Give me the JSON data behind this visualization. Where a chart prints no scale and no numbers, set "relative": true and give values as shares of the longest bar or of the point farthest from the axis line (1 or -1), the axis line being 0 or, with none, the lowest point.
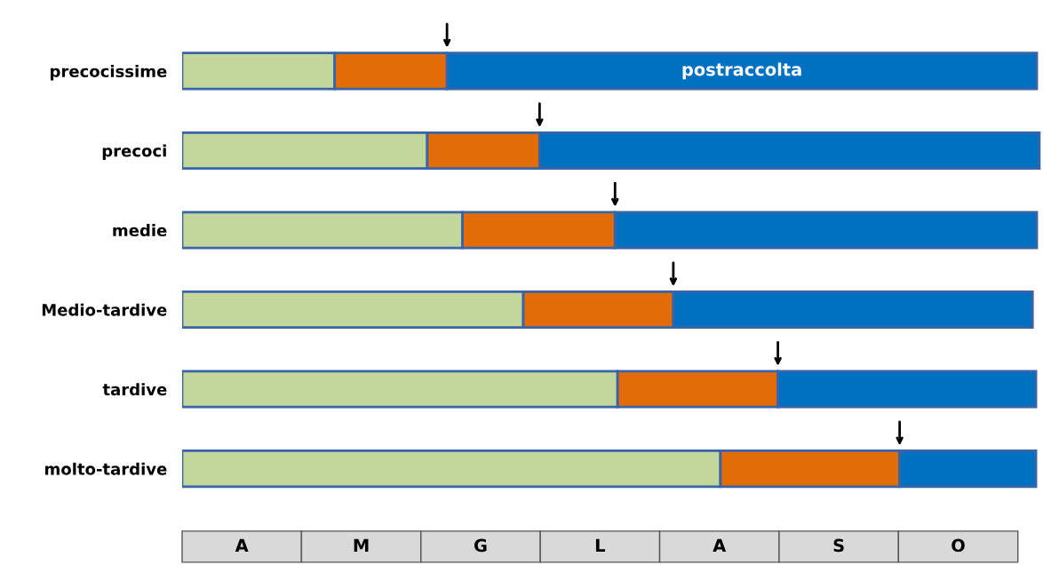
{
  "chart_data": {
    "type": "bar",
    "orientation": "horizontal",
    "stacked": true,
    "relative": true,
    "categories": [
      "precocissime",
      "precoci",
      "medie",
      "Medio-tardive",
      "tardive",
      "molto-tardive"
    ],
    "series": [
      {
        "color": "#c3d69b",
        "values": [
          0.178,
          0.286,
          0.327,
          0.398,
          0.508,
          0.628
        ]
      },
      {
        "color": "#e36c09",
        "values": [
          0.131,
          0.131,
          0.178,
          0.175,
          0.187,
          0.209
        ]
      },
      {
        "name": "postraccolta",
        "color": "#0070c0",
        "values": [
          0.688,
          0.583,
          0.492,
          0.419,
          0.301,
          0.159
        ]
      }
    ],
    "annotations": [
      "A",
      "M",
      "G",
      "L",
      "A",
      "S",
      "O"
    ],
    "grid": false,
    "legend": false
  }
}
